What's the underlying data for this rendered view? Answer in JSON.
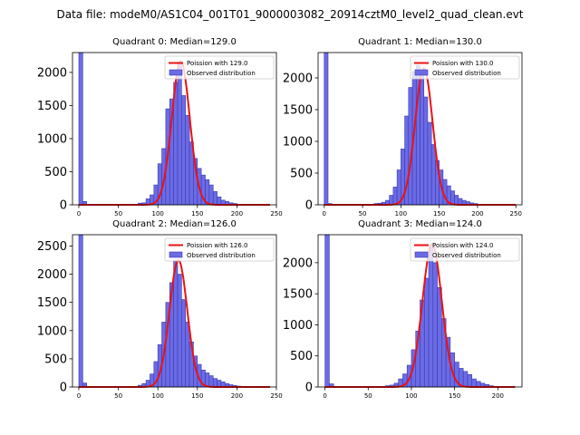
{
  "chart_data": {
    "figure_title": "Data file: modeM0/AS1C04_001T01_9000003082_20914cztM0_level2_quad_clean.evt",
    "colors": {
      "bar_fill": "#6b6be6",
      "bar_edge": "#3a3ab0",
      "fit_line": "#ee1111",
      "axes": "#000000"
    },
    "panels": [
      {
        "type": "bar",
        "title": "Quadrant 0: Median=129.0",
        "legend": {
          "position": "top-right",
          "fit_label": "Poission with 129.0",
          "hist_label": "Observed distribution"
        },
        "xlim": [
          -8,
          250
        ],
        "ylim": [
          0,
          2300
        ],
        "xticks": [
          "0",
          "50",
          "100",
          "150",
          "200",
          "250"
        ],
        "yticks": [
          "0",
          "500",
          "1000",
          "1500",
          "2000"
        ],
        "bin_width": 5,
        "zero_bin_value": 2300,
        "fit_mean": 129.0,
        "fit_peak": 2170,
        "bins": [
          [
            5,
            50
          ],
          [
            70,
            5
          ],
          [
            75,
            25
          ],
          [
            80,
            30
          ],
          [
            85,
            90
          ],
          [
            90,
            150
          ],
          [
            95,
            300
          ],
          [
            100,
            620
          ],
          [
            105,
            850
          ],
          [
            110,
            1450
          ],
          [
            115,
            1600
          ],
          [
            120,
            1850
          ],
          [
            125,
            2150
          ],
          [
            130,
            1650
          ],
          [
            135,
            1350
          ],
          [
            140,
            950
          ],
          [
            145,
            700
          ],
          [
            150,
            550
          ],
          [
            155,
            450
          ],
          [
            160,
            380
          ],
          [
            165,
            300
          ],
          [
            170,
            200
          ],
          [
            175,
            120
          ],
          [
            180,
            70
          ],
          [
            185,
            50
          ],
          [
            190,
            30
          ],
          [
            195,
            20
          ],
          [
            200,
            10
          ]
        ]
      },
      {
        "type": "bar",
        "title": "Quadrant 1: Median=130.0",
        "legend": {
          "position": "top-right",
          "fit_label": "Poission with 130.0",
          "hist_label": "Observed distribution"
        },
        "xlim": [
          -8,
          258
        ],
        "ylim": [
          0,
          2400
        ],
        "xticks": [
          "0",
          "50",
          "100",
          "150",
          "200",
          "250"
        ],
        "yticks": [
          "0",
          "500",
          "1000",
          "1500",
          "2000"
        ],
        "bin_width": 5,
        "zero_bin_value": 2400,
        "fit_mean": 130.0,
        "fit_peak": 2150,
        "bins": [
          [
            5,
            20
          ],
          [
            65,
            20
          ],
          [
            70,
            25
          ],
          [
            75,
            40
          ],
          [
            80,
            70
          ],
          [
            85,
            150
          ],
          [
            90,
            280
          ],
          [
            95,
            550
          ],
          [
            100,
            880
          ],
          [
            105,
            1400
          ],
          [
            110,
            1850
          ],
          [
            115,
            2100
          ],
          [
            120,
            2200
          ],
          [
            125,
            2100
          ],
          [
            130,
            1700
          ],
          [
            135,
            1300
          ],
          [
            140,
            950
          ],
          [
            145,
            700
          ],
          [
            150,
            550
          ],
          [
            155,
            400
          ],
          [
            160,
            300
          ],
          [
            165,
            220
          ],
          [
            170,
            150
          ],
          [
            175,
            100
          ],
          [
            180,
            70
          ],
          [
            185,
            50
          ],
          [
            190,
            30
          ],
          [
            195,
            20
          ],
          [
            200,
            10
          ]
        ]
      },
      {
        "type": "bar",
        "title": "Quadrant 2: Median=126.0",
        "legend": {
          "position": "top-right",
          "fit_label": "Poission with 126.0",
          "hist_label": "Observed distribution"
        },
        "xlim": [
          -8,
          250
        ],
        "ylim": [
          0,
          2700
        ],
        "xticks": [
          "0",
          "50",
          "100",
          "150",
          "200",
          "250"
        ],
        "yticks": [
          "0",
          "500",
          "1000",
          "1500",
          "2000",
          "2500"
        ],
        "bin_width": 5,
        "zero_bin_value": 2700,
        "fit_mean": 126.0,
        "fit_peak": 2250,
        "bins": [
          [
            5,
            70
          ],
          [
            70,
            10
          ],
          [
            75,
            30
          ],
          [
            80,
            60
          ],
          [
            85,
            120
          ],
          [
            90,
            230
          ],
          [
            95,
            450
          ],
          [
            100,
            750
          ],
          [
            105,
            1150
          ],
          [
            110,
            1500
          ],
          [
            115,
            1850
          ],
          [
            120,
            2250
          ],
          [
            125,
            2000
          ],
          [
            130,
            1550
          ],
          [
            135,
            1150
          ],
          [
            140,
            800
          ],
          [
            145,
            550
          ],
          [
            150,
            400
          ],
          [
            155,
            300
          ],
          [
            160,
            250
          ],
          [
            165,
            200
          ],
          [
            170,
            150
          ],
          [
            175,
            120
          ],
          [
            180,
            90
          ],
          [
            185,
            60
          ],
          [
            190,
            40
          ],
          [
            195,
            25
          ],
          [
            200,
            15
          ],
          [
            205,
            10
          ]
        ]
      },
      {
        "type": "bar",
        "title": "Quadrant 3: Median=124.0",
        "legend": {
          "position": "top-right",
          "fit_label": "Poission with 124.0",
          "hist_label": "Observed distribution"
        },
        "xlim": [
          -8,
          228
        ],
        "ylim": [
          0,
          2450
        ],
        "xticks": [
          "0",
          "50",
          "100",
          "150",
          "200"
        ],
        "yticks": [
          "0",
          "500",
          "1000",
          "1500",
          "2000"
        ],
        "bin_width": 5,
        "zero_bin_value": 2450,
        "fit_mean": 124.0,
        "fit_peak": 2300,
        "bins": [
          [
            5,
            50
          ],
          [
            70,
            20
          ],
          [
            75,
            30
          ],
          [
            80,
            60
          ],
          [
            85,
            130
          ],
          [
            90,
            210
          ],
          [
            95,
            350
          ],
          [
            100,
            600
          ],
          [
            105,
            900
          ],
          [
            110,
            1400
          ],
          [
            115,
            1750
          ],
          [
            120,
            2250
          ],
          [
            125,
            2000
          ],
          [
            130,
            1600
          ],
          [
            135,
            1100
          ],
          [
            140,
            800
          ],
          [
            145,
            550
          ],
          [
            150,
            400
          ],
          [
            155,
            300
          ],
          [
            160,
            250
          ],
          [
            165,
            200
          ],
          [
            170,
            130
          ],
          [
            175,
            90
          ],
          [
            180,
            60
          ],
          [
            185,
            40
          ],
          [
            190,
            20
          ],
          [
            195,
            10
          ]
        ]
      }
    ]
  }
}
